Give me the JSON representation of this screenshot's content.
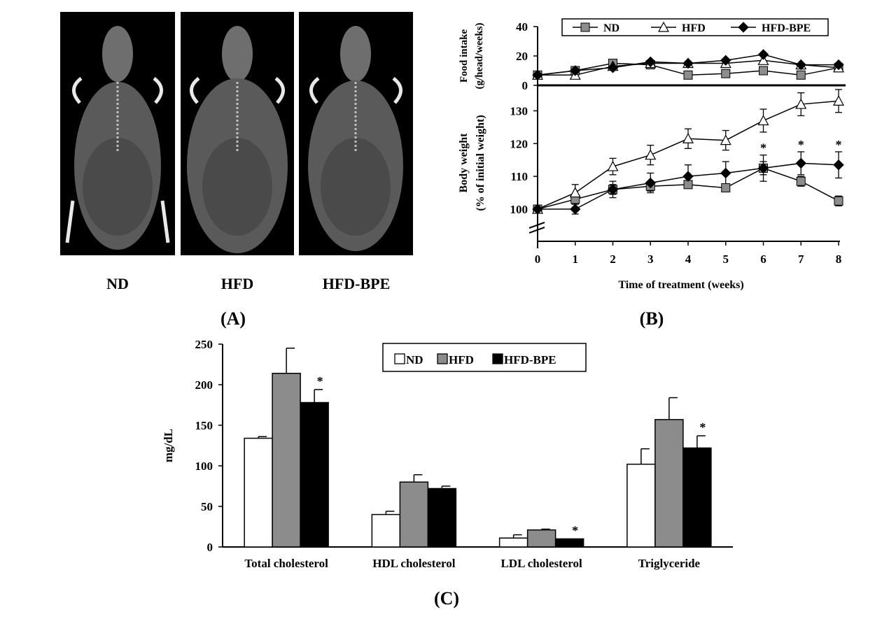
{
  "panels": {
    "A": {
      "label": "(A)",
      "images": [
        {
          "name": "ND",
          "caption": "ND"
        },
        {
          "name": "HFD",
          "caption": "HFD"
        },
        {
          "name": "HFD-BPE",
          "caption": "HFD-BPE"
        }
      ]
    },
    "B": {
      "label": "(B)"
    },
    "C": {
      "label": "(C)"
    }
  },
  "colors": {
    "nd_marker": "#8c8c8c",
    "hfd_marker": "#ffffff",
    "bpe_marker": "#000000",
    "nd_bar": "#ffffff",
    "hfd_bar": "#8c8c8c",
    "bpe_bar": "#000000"
  },
  "chart_data": [
    {
      "id": "food",
      "type": "line",
      "ylabel": [
        "Food intake",
        "(g/head/weeks)"
      ],
      "ylim": [
        0,
        40
      ],
      "yticks": [
        0,
        20,
        40
      ],
      "x": [
        0,
        1,
        2,
        3,
        4,
        5,
        6,
        7,
        8
      ],
      "legend": [
        "ND",
        "HFD",
        "HFD-BPE"
      ],
      "series": [
        {
          "name": "ND",
          "marker": "square",
          "values": [
            7,
            10,
            15,
            14,
            7,
            8,
            10,
            7,
            12
          ]
        },
        {
          "name": "HFD",
          "marker": "triangle",
          "values": [
            7,
            7,
            13,
            15,
            15,
            15,
            17,
            14,
            12
          ]
        },
        {
          "name": "HFD-BPE",
          "marker": "diamond",
          "values": [
            7,
            10,
            12,
            16,
            15,
            17,
            21,
            14,
            14
          ]
        }
      ]
    },
    {
      "id": "weight",
      "type": "line",
      "ylabel": [
        "Body weight",
        "(% of initial weight)"
      ],
      "ylim": [
        100,
        135
      ],
      "yticks": [
        100,
        110,
        120,
        130
      ],
      "x": [
        0,
        1,
        2,
        3,
        4,
        5,
        6,
        7,
        8
      ],
      "xticks": [
        "0",
        "1",
        "2",
        "3",
        "4",
        "5",
        "6",
        "7",
        "8"
      ],
      "xlabel": "Time of treatment (weeks)",
      "series": [
        {
          "name": "ND",
          "marker": "square",
          "values": [
            100,
            103,
            106,
            107,
            107.5,
            106.5,
            112.5,
            108.5,
            102.5
          ],
          "errors": [
            1,
            1.5,
            1.5,
            1.5,
            1,
            1,
            2,
            1.5,
            1.5
          ]
        },
        {
          "name": "HFD",
          "marker": "triangle",
          "values": [
            100,
            105,
            113,
            116.5,
            121.5,
            121,
            127,
            132,
            133
          ],
          "errors": [
            1,
            2.5,
            2.5,
            3,
            3,
            3,
            3.5,
            3.5,
            3.5
          ]
        },
        {
          "name": "HFD-BPE",
          "marker": "diamond",
          "values": [
            100,
            100,
            106,
            108,
            110,
            111,
            112.5,
            114,
            113.5
          ],
          "errors": [
            1,
            1.5,
            2.5,
            3,
            3.5,
            3.5,
            4,
            3.5,
            4
          ]
        }
      ],
      "significance": [
        {
          "x": 6,
          "text": "*"
        },
        {
          "x": 7,
          "text": "*"
        },
        {
          "x": 8,
          "text": "*"
        }
      ]
    },
    {
      "id": "lipids",
      "type": "bar",
      "ylabel": "mg/dL",
      "ylim": [
        0,
        250
      ],
      "yticks": [
        0,
        50,
        100,
        150,
        200,
        250
      ],
      "categories": [
        "Total cholesterol",
        "HDL cholesterol",
        "LDL cholesterol",
        "Triglyceride"
      ],
      "legend": [
        "ND",
        "HFD",
        "HFD-BPE"
      ],
      "series": [
        {
          "name": "ND",
          "values": [
            134,
            40,
            11,
            102
          ],
          "errors": [
            2,
            4,
            4,
            19
          ]
        },
        {
          "name": "HFD",
          "values": [
            214,
            80,
            21,
            157
          ],
          "errors": [
            31,
            9,
            1,
            27
          ]
        },
        {
          "name": "HFD-BPE",
          "values": [
            178,
            72,
            10,
            122
          ],
          "errors": [
            16,
            3,
            0,
            15
          ]
        }
      ],
      "significance": [
        {
          "category": 0,
          "text": "*"
        },
        {
          "category": 2,
          "text": "*"
        },
        {
          "category": 3,
          "text": "*"
        }
      ]
    }
  ]
}
